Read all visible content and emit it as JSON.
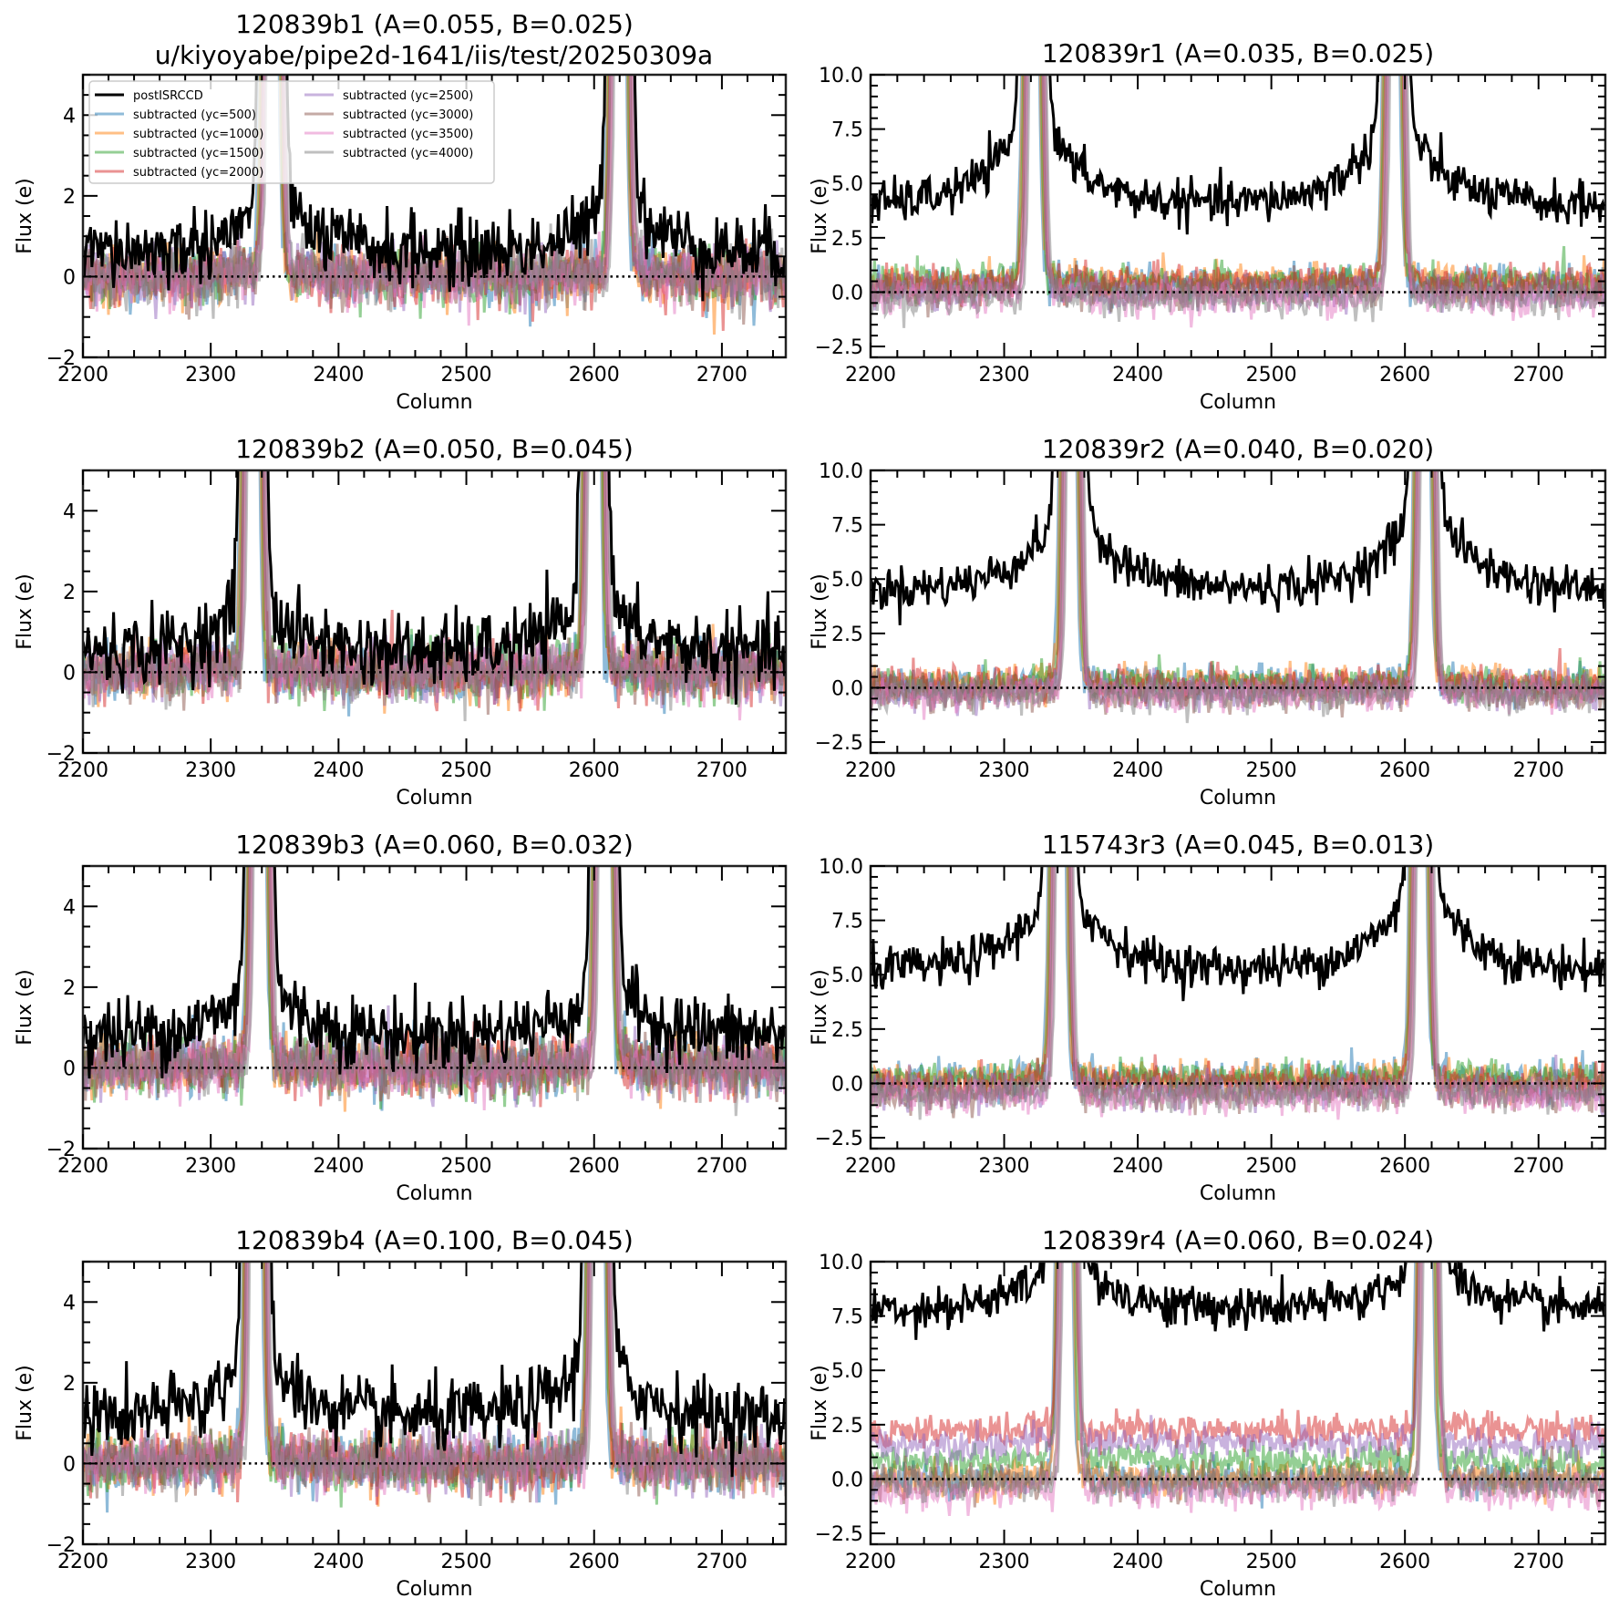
{
  "figure": {
    "suptitle_line2": "u/kiyoyabe/pipe2d-1641/iis/test/20250309a"
  },
  "legend": {
    "entries": [
      {
        "label": "postISRCCD",
        "color": "#000000"
      },
      {
        "label": "subtracted (yc=500)",
        "color": "#1f77b4"
      },
      {
        "label": "subtracted (yc=1000)",
        "color": "#ff7f0e"
      },
      {
        "label": "subtracted (yc=1500)",
        "color": "#2ca02c"
      },
      {
        "label": "subtracted (yc=2000)",
        "color": "#d62728"
      },
      {
        "label": "subtracted (yc=2500)",
        "color": "#9467bd"
      },
      {
        "label": "subtracted (yc=3000)",
        "color": "#8c564b"
      },
      {
        "label": "subtracted (yc=3500)",
        "color": "#e377c2"
      },
      {
        "label": "subtracted (yc=4000)",
        "color": "#7f7f7f"
      }
    ]
  },
  "chart_data": [
    {
      "type": "line",
      "title": "120839b1 (A=0.055, B=0.025)",
      "xlabel": "Column",
      "ylabel": "Flux (e)",
      "xlim": [
        2200,
        2750
      ],
      "ylim": [
        -2,
        5
      ],
      "xticks": [
        "2200",
        "2300",
        "2400",
        "2500",
        "2600",
        "2700"
      ],
      "yticks": [
        "−2",
        "0",
        "2",
        "4"
      ],
      "ytick_values": [
        -2,
        0,
        2,
        4
      ],
      "legend": "upper-left",
      "peaks": [
        2348,
        2620
      ],
      "post_baseline": 0.6,
      "post_wing": 1.5,
      "sub_offsets": [
        0,
        0,
        0,
        0,
        0,
        0,
        0,
        0
      ],
      "noise": 0.45,
      "zero_line": 0
    },
    {
      "type": "line",
      "title": "120839r1 (A=0.035, B=0.025)",
      "xlabel": "Column",
      "ylabel": "Flux (e)",
      "xlim": [
        2200,
        2750
      ],
      "ylim": [
        -3,
        10
      ],
      "xticks": [
        "2200",
        "2300",
        "2400",
        "2500",
        "2600",
        "2700"
      ],
      "yticks": [
        "−2.5",
        "0.0",
        "2.5",
        "5.0",
        "7.5",
        "10.0"
      ],
      "ytick_values": [
        -2.5,
        0,
        2.5,
        5,
        7.5,
        10
      ],
      "peaks": [
        2322,
        2592
      ],
      "post_baseline": 4.0,
      "post_wing": 5.0,
      "sub_offsets": [
        0.4,
        0.5,
        0.4,
        0.4,
        0,
        0,
        -0.3,
        -0.3
      ],
      "noise": 0.5,
      "zero_line": 0
    },
    {
      "type": "line",
      "title": "120839b2 (A=0.050, B=0.045)",
      "xlabel": "Column",
      "ylabel": "Flux (e)",
      "xlim": [
        2200,
        2750
      ],
      "ylim": [
        -2,
        5
      ],
      "xticks": [
        "2200",
        "2300",
        "2400",
        "2500",
        "2600",
        "2700"
      ],
      "yticks": [
        "−2",
        "0",
        "2",
        "4"
      ],
      "ytick_values": [
        -2,
        0,
        2,
        4
      ],
      "peaks": [
        2333,
        2600
      ],
      "post_baseline": 0.5,
      "post_wing": 1.5,
      "sub_offsets": [
        0,
        0,
        0,
        0,
        0,
        0,
        0,
        0
      ],
      "noise": 0.45,
      "zero_line": 0
    },
    {
      "type": "line",
      "title": "120839r2 (A=0.040, B=0.020)",
      "xlabel": "Column",
      "ylabel": "Flux (e)",
      "xlim": [
        2200,
        2750
      ],
      "ylim": [
        -3,
        10
      ],
      "xticks": [
        "2200",
        "2300",
        "2400",
        "2500",
        "2600",
        "2700"
      ],
      "yticks": [
        "−2.5",
        "0.0",
        "2.5",
        "5.0",
        "7.5",
        "10.0"
      ],
      "ytick_values": [
        -2.5,
        0,
        2.5,
        5,
        7.5,
        10
      ],
      "peaks": [
        2350,
        2615
      ],
      "post_baseline": 4.5,
      "post_wing": 5.0,
      "sub_offsets": [
        0.2,
        0.2,
        0.2,
        0.1,
        -0.2,
        -0.3,
        -0.3,
        -0.3
      ],
      "noise": 0.5,
      "zero_line": 0
    },
    {
      "type": "line",
      "title": "120839b3 (A=0.060, B=0.032)",
      "xlabel": "Column",
      "ylabel": "Flux (e)",
      "xlim": [
        2200,
        2750
      ],
      "ylim": [
        -2,
        5
      ],
      "xticks": [
        "2200",
        "2300",
        "2400",
        "2500",
        "2600",
        "2700"
      ],
      "yticks": [
        "−2",
        "0",
        "2",
        "4"
      ],
      "ytick_values": [
        -2,
        0,
        2,
        4
      ],
      "peaks": [
        2338,
        2608
      ],
      "post_baseline": 0.8,
      "post_wing": 1.5,
      "sub_offsets": [
        0,
        0,
        0,
        0,
        0,
        0,
        0,
        0
      ],
      "noise": 0.45,
      "zero_line": 0
    },
    {
      "type": "line",
      "title": "115743r3 (A=0.045, B=0.013)",
      "xlabel": "Column",
      "ylabel": "Flux (e)",
      "xlim": [
        2200,
        2750
      ],
      "ylim": [
        -3,
        10
      ],
      "xticks": [
        "2200",
        "2300",
        "2400",
        "2500",
        "2600",
        "2700"
      ],
      "yticks": [
        "−2.5",
        "0.0",
        "2.5",
        "5.0",
        "7.5",
        "10.0"
      ],
      "ytick_values": [
        -2.5,
        0,
        2.5,
        5,
        7.5,
        10
      ],
      "peaks": [
        2342,
        2612
      ],
      "post_baseline": 5.2,
      "post_wing": 5.0,
      "sub_offsets": [
        0.2,
        0.2,
        0.2,
        0,
        -0.4,
        -0.5,
        -0.6,
        -0.5
      ],
      "noise": 0.5,
      "zero_line": 0
    },
    {
      "type": "line",
      "title": "120839b4 (A=0.100, B=0.045)",
      "xlabel": "Column",
      "ylabel": "Flux (e)",
      "xlim": [
        2200,
        2750
      ],
      "ylim": [
        -2,
        5
      ],
      "xticks": [
        "2200",
        "2300",
        "2400",
        "2500",
        "2600",
        "2700"
      ],
      "yticks": [
        "−2",
        "0",
        "2",
        "4"
      ],
      "ytick_values": [
        -2,
        0,
        2,
        4
      ],
      "peaks": [
        2335,
        2603
      ],
      "post_baseline": 1.1,
      "post_wing": 2.0,
      "sub_offsets": [
        0,
        0,
        0,
        0,
        0,
        0,
        0,
        0
      ],
      "noise": 0.45,
      "zero_line": 0
    },
    {
      "type": "line",
      "title": "120839r4 (A=0.060, B=0.024)",
      "xlabel": "Column",
      "ylabel": "Flux (e)",
      "xlim": [
        2200,
        2750
      ],
      "ylim": [
        -3,
        10
      ],
      "xticks": [
        "2200",
        "2300",
        "2400",
        "2500",
        "2600",
        "2700"
      ],
      "yticks": [
        "−2.5",
        "0.0",
        "2.5",
        "5.0",
        "7.5",
        "10.0"
      ],
      "ytick_values": [
        -2.5,
        0,
        2.5,
        5,
        7.5,
        10
      ],
      "peaks": [
        2347,
        2617
      ],
      "post_baseline": 7.8,
      "post_wing": 3.0,
      "sub_offsets": [
        0,
        0,
        0.8,
        2.2,
        1.6,
        -0.2,
        -0.6,
        -0.2
      ],
      "noise": 0.5,
      "zero_line": 0
    }
  ]
}
